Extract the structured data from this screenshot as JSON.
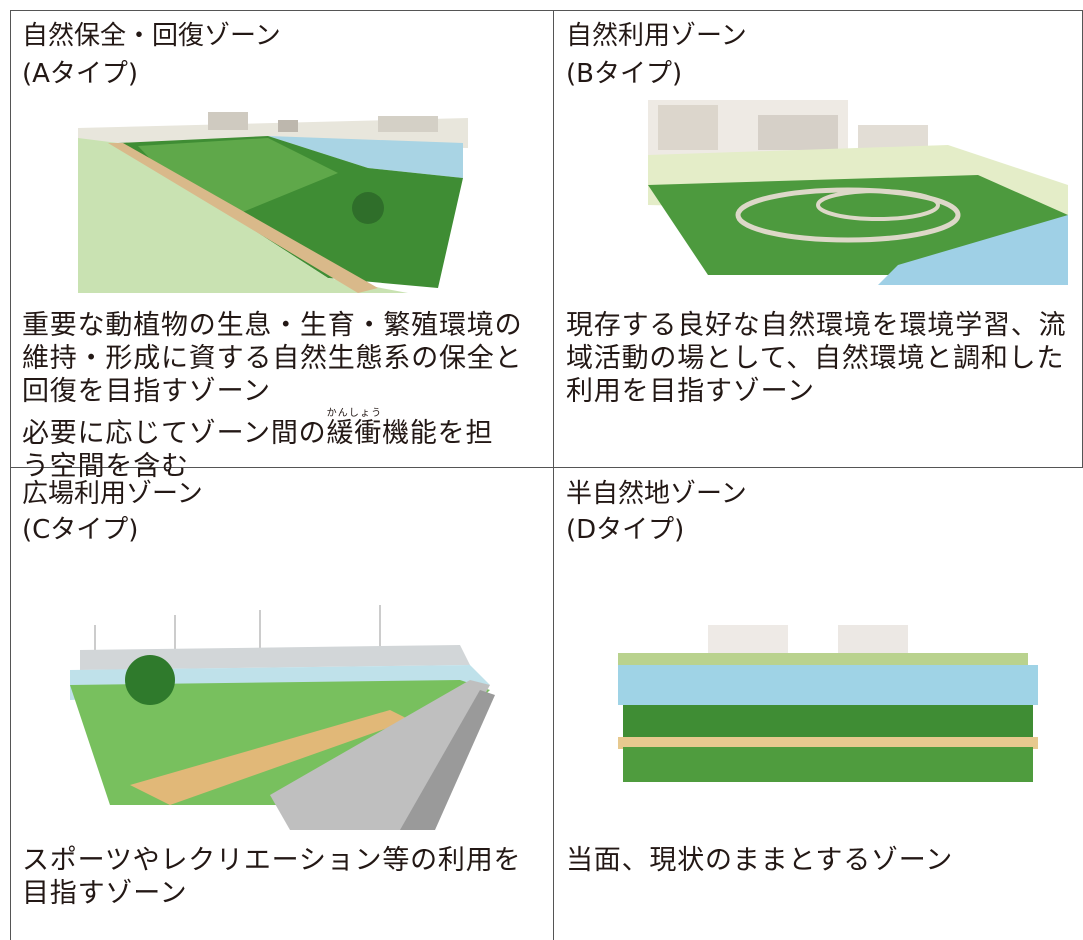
{
  "cells": [
    {
      "title": "自然保全・回復ゾーン",
      "type": "(Aタイプ)",
      "lines": [
        "重要な動植物の生息・生育・繁殖環境の",
        "維持・形成に資する自然生態系の保全と",
        "回復を目指すゾーン"
      ],
      "note": {
        "before": "必要に応じてゾーン間の",
        "ruby_base": "緩衝",
        "ruby_text": "かんしょう",
        "after": "機能を担",
        "last_line": "う空間を含む"
      }
    },
    {
      "title": "自然利用ゾーン",
      "type": "(Bタイプ)",
      "lines": [
        "現存する良好な自然環境を環境学習、流",
        "域活動の場として、自然環境と調和した",
        "利用を目指すゾーン"
      ]
    },
    {
      "title": "広場利用ゾーン",
      "type": "(Cタイプ)",
      "lines": [
        "スポーツやレクリエーション等の利用を",
        "目指すゾーン"
      ]
    },
    {
      "title": "半自然地ゾーン",
      "type": "(Dタイプ)",
      "lines": [
        "当面、現状のままとするゾーン"
      ]
    }
  ]
}
